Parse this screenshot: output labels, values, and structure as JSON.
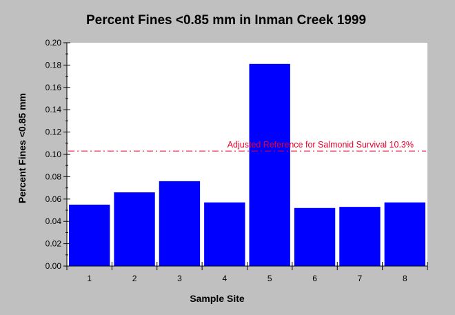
{
  "chart_data": {
    "type": "bar",
    "title": "Percent Fines <0.85 mm in Inman Creek 1999",
    "xlabel": "Sample Site",
    "ylabel": "Percent Fines <0.85 mm",
    "categories": [
      "1",
      "2",
      "3",
      "4",
      "5",
      "6",
      "7",
      "8"
    ],
    "values": [
      0.055,
      0.066,
      0.076,
      0.057,
      0.181,
      0.052,
      0.053,
      0.057
    ],
    "ylim": [
      0,
      0.2
    ],
    "yticks": [
      "0.00",
      "0.02",
      "0.04",
      "0.06",
      "0.08",
      "0.10",
      "0.12",
      "0.14",
      "0.16",
      "0.18",
      "0.20"
    ],
    "grid": false,
    "bar_color": "#0000ff",
    "reference_line": {
      "label": "Adjusted Reference for Salmonid Survival 10.3%",
      "value": 0.103,
      "color": "#e8002a",
      "style": "dash-dot"
    }
  }
}
